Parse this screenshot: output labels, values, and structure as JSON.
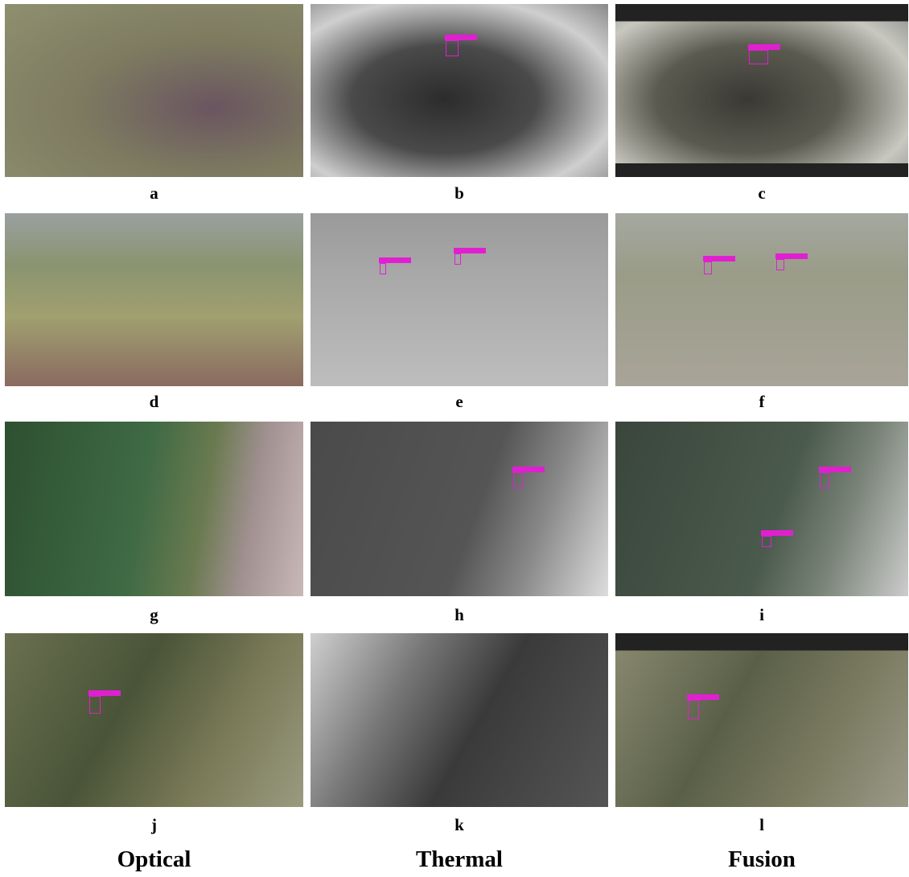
{
  "panels": [
    {
      "label": "a"
    },
    {
      "label": "b"
    },
    {
      "label": "c"
    },
    {
      "label": "d"
    },
    {
      "label": "e"
    },
    {
      "label": "f"
    },
    {
      "label": "g"
    },
    {
      "label": "h"
    },
    {
      "label": "i"
    },
    {
      "label": "j"
    },
    {
      "label": "k"
    },
    {
      "label": "l"
    }
  ],
  "columns": [
    "Optical",
    "Thermal",
    "Fusion"
  ]
}
